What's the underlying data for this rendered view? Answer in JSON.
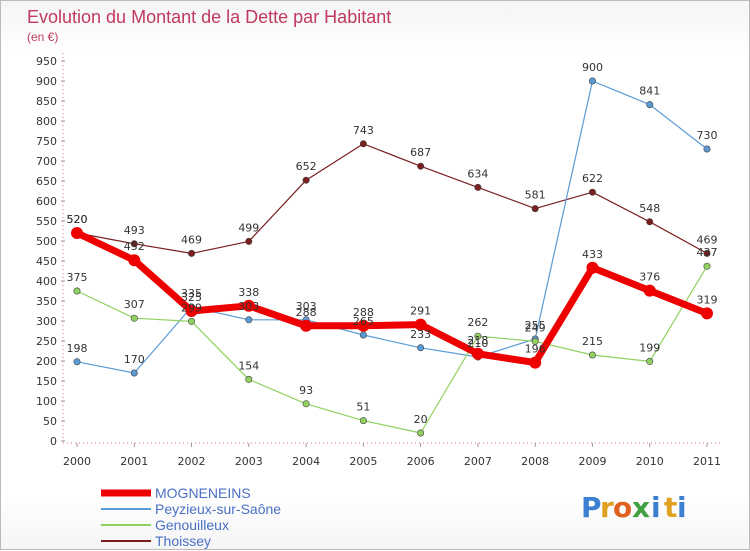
{
  "chart_data": {
    "type": "line",
    "title": "Evolution du Montant de la Dette par Habitant",
    "subtitle": "(en €)",
    "categories": [
      "2000",
      "2001",
      "2002",
      "2003",
      "2004",
      "2005",
      "2006",
      "2007",
      "2008",
      "2009",
      "2010",
      "2011"
    ],
    "ylim": [
      0,
      950
    ],
    "yticks": [
      0,
      50,
      100,
      150,
      200,
      250,
      300,
      350,
      400,
      450,
      500,
      550,
      600,
      650,
      700,
      750,
      800,
      850,
      900,
      950
    ],
    "grid": false,
    "legend_position": "bottom-left",
    "series": [
      {
        "name": "Thoissey",
        "color": "#7a1f1f",
        "values": [
          520,
          493,
          469,
          499,
          652,
          743,
          687,
          634,
          581,
          622,
          548,
          469
        ]
      },
      {
        "name": "Peyzieux-sur-Saône",
        "color": "#5b9bd5",
        "values": [
          198,
          170,
          335,
          303,
          303,
          265,
          233,
          210,
          255,
          900,
          841,
          730
        ]
      },
      {
        "name": "Genouilleux",
        "color": "#90d060",
        "values": [
          375,
          307,
          299,
          154,
          93,
          51,
          20,
          262,
          249,
          215,
          199,
          437
        ]
      },
      {
        "name": "MOGNENEINS",
        "color": "#ee0000",
        "values": [
          520,
          452,
          325,
          338,
          288,
          288,
          291,
          218,
          196,
          433,
          376,
          319
        ]
      }
    ],
    "data_labels": [
      {
        "series": "MOGNENEINS",
        "values": [
          "520",
          "452",
          "325",
          "338",
          "288",
          "288",
          "291",
          "218",
          "196",
          "433",
          "376",
          "319"
        ]
      },
      {
        "series": "Peyzieux-sur-Saône",
        "values": [
          "198",
          "170",
          "335",
          "303",
          "303",
          "265",
          "233",
          "210",
          "255",
          "900",
          "841",
          "730"
        ]
      },
      {
        "series": "Genouilleux",
        "values": [
          "375",
          "307",
          "299",
          "154",
          "93",
          "51",
          "20",
          "262",
          "249",
          "215",
          "199",
          "437"
        ]
      },
      {
        "series": "Thoissey",
        "values": [
          "520",
          "493",
          "469",
          "499",
          "652",
          "743",
          "687",
          "634",
          "581",
          "622",
          "548",
          "469"
        ]
      }
    ]
  },
  "legend": [
    {
      "label": "MOGNENEINS",
      "color": "#ee0000"
    },
    {
      "label": "Peyzieux-sur-Saône",
      "color": "#5b9bd5"
    },
    {
      "label": "Genouilleux",
      "color": "#90d060"
    },
    {
      "label": "Thoissey",
      "color": "#7a1f1f"
    }
  ],
  "logo": {
    "text": "Proxiti",
    "letters": [
      {
        "ch": "P",
        "color": "#3a7fd0"
      },
      {
        "ch": "r",
        "color": "#e0a020"
      },
      {
        "ch": "o",
        "color": "#e06020"
      },
      {
        "ch": "x",
        "color": "#40a040"
      },
      {
        "ch": "i",
        "color": "#3a7fd0"
      },
      {
        "ch": "t",
        "color": "#e0a020"
      },
      {
        "ch": "i",
        "color": "#3a7fd0"
      }
    ]
  }
}
